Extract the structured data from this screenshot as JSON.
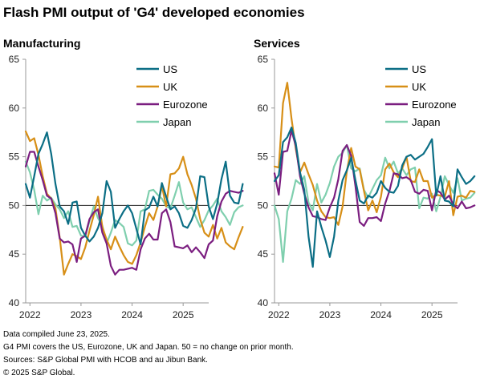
{
  "title": "Flash PMI output of 'G4' developed economies",
  "colors": {
    "US": "#0b6e85",
    "UK": "#d78f17",
    "Eurozone": "#7b1e80",
    "Japan": "#7fcfae"
  },
  "notes": [
    "Data compiled June 23, 2025.",
    "G4 PMI covers the US, Eurozone, UK and Japan. 50 = no change on prior month.",
    "Sources: S&P Global PMI with HCOB and au Jibun Bank.",
    "© 2025 S&P Global."
  ],
  "chart_data": [
    {
      "type": "line",
      "title": "Manufacturing",
      "ylim": [
        40,
        65
      ],
      "yticks": [
        40,
        45,
        50,
        55,
        60,
        65
      ],
      "xlim": [
        2021.917,
        2025.5
      ],
      "xticks": [
        2022,
        2023,
        2024,
        2025
      ],
      "xtick_labels": [
        "2022",
        "2023",
        "2024",
        "2025"
      ],
      "reference_line": 50,
      "legend_position": "top-right",
      "series": [
        {
          "name": "US",
          "x_start": 2021.917,
          "values": [
            52.2,
            50.8,
            53.0,
            55.3,
            56.3,
            57.5,
            55.3,
            52.2,
            49.9,
            49.4,
            48.1,
            50.3,
            50.4,
            47.7,
            46.9,
            46.3,
            46.8,
            47.7,
            49.2,
            52.5,
            51.4,
            47.7,
            48.6,
            49.4,
            50.0,
            49.2,
            47.6,
            46.0,
            49.5,
            49.8,
            50.9,
            49.9,
            52.3,
            50.9,
            49.6,
            49.9,
            49.2,
            47.9,
            47.7,
            48.5,
            49.7,
            53.0,
            52.9,
            49.9,
            48.6,
            50.2,
            52.7,
            54.5,
            51.0,
            50.3,
            50.2,
            52.2
          ]
        },
        {
          "name": "UK",
          "x_start": 2021.917,
          "values": [
            57.6,
            56.6,
            56.9,
            55.2,
            53.0,
            51.2,
            50.7,
            49.7,
            46.7,
            42.9,
            44.0,
            45.0,
            44.8,
            44.5,
            45.7,
            47.4,
            49.0,
            50.9,
            47.8,
            46.5,
            45.5,
            46.8,
            45.8,
            44.9,
            44.2,
            44.0,
            44.9,
            46.2,
            47.8,
            49.2,
            48.5,
            49.9,
            52.0,
            49.9,
            53.2,
            53.3,
            53.8,
            55.0,
            53.2,
            52.1,
            50.7,
            48.6,
            47.2,
            46.8,
            48.0,
            46.6,
            47.7,
            46.2,
            45.8,
            45.5,
            46.7,
            47.8
          ]
        },
        {
          "name": "Eurozone",
          "x_start": 2021.917,
          "values": [
            54.0,
            55.5,
            55.5,
            54.0,
            52.6,
            51.0,
            50.7,
            49.2,
            46.6,
            46.2,
            46.3,
            46.0,
            44.2,
            46.6,
            46.9,
            48.6,
            49.3,
            49.6,
            47.2,
            46.1,
            43.8,
            42.9,
            43.4,
            43.4,
            43.5,
            43.6,
            43.4,
            45.5,
            46.6,
            47.1,
            46.5,
            46.5,
            49.2,
            49.6,
            48.3,
            45.8,
            45.7,
            45.6,
            45.9,
            45.2,
            45.7,
            45.2,
            44.6,
            46.0,
            46.4,
            48.9,
            50.4,
            51.2,
            51.5,
            51.4,
            51.3,
            51.5
          ]
        },
        {
          "name": "Japan",
          "x_start": 2021.917,
          "values": [
            54.5,
            53.4,
            51.6,
            49.1,
            51.0,
            50.5,
            50.8,
            50.1,
            49.6,
            48.7,
            49.4,
            47.8,
            47.9,
            46.9,
            46.8,
            48.4,
            49.9,
            48.7,
            47.9,
            46.1,
            47.2,
            48.5,
            48.2,
            47.8,
            46.1,
            45.9,
            46.4,
            49.4,
            49.6,
            51.5,
            51.6,
            51.1,
            50.7,
            49.9,
            49.7,
            51.0,
            52.4,
            50.3,
            49.6,
            49.8,
            48.8,
            47.8,
            48.5,
            49.5,
            50.0,
            50.7,
            49.4,
            48.8,
            48.0,
            49.3,
            49.8,
            50.0
          ]
        }
      ]
    },
    {
      "type": "line",
      "title": "Services",
      "ylim": [
        40,
        65
      ],
      "yticks": [
        40,
        45,
        50,
        55,
        60,
        65
      ],
      "xlim": [
        2021.917,
        2025.5
      ],
      "xticks": [
        2022,
        2023,
        2024,
        2025
      ],
      "xtick_labels": [
        "2022",
        "2023",
        "2024",
        "2025"
      ],
      "reference_line": 50,
      "legend_position": "top-right",
      "series": [
        {
          "name": "US",
          "x_start": 2021.917,
          "values": [
            52.5,
            53.1,
            56.5,
            57.0,
            58.0,
            56.4,
            53.4,
            51.6,
            46.8,
            43.7,
            49.4,
            47.8,
            46.4,
            44.7,
            46.8,
            50.5,
            52.6,
            53.6,
            54.9,
            52.6,
            50.5,
            50.2,
            51.0,
            50.8,
            51.3,
            52.5,
            51.8,
            51.4,
            51.3,
            52.0,
            54.1,
            55.0,
            55.2,
            54.7,
            55.0,
            55.3,
            56.0,
            56.8,
            51.0,
            53.0,
            50.5,
            50.4,
            49.9,
            53.7,
            52.9,
            52.2,
            52.5,
            53.0
          ]
        },
        {
          "name": "UK",
          "x_start": 2021.917,
          "values": [
            54.0,
            53.9,
            60.5,
            62.6,
            58.9,
            55.8,
            53.4,
            54.4,
            53.2,
            52.1,
            50.5,
            49.4,
            48.8,
            48.7,
            48.8,
            48.0,
            49.9,
            53.5,
            55.9,
            54.0,
            53.7,
            51.5,
            49.5,
            50.5,
            49.3,
            50.9,
            53.7,
            54.3,
            53.4,
            52.9,
            53.8,
            55.0,
            52.5,
            52.4,
            53.7,
            52.5,
            52.5,
            50.8,
            51.1,
            51.0,
            50.9,
            52.5,
            49.0,
            50.9,
            51.0,
            50.8,
            51.5,
            51.4
          ]
        },
        {
          "name": "Eurozone",
          "x_start": 2021.917,
          "values": [
            53.3,
            51.1,
            55.5,
            55.6,
            57.7,
            56.1,
            53.0,
            51.2,
            49.8,
            48.9,
            48.8,
            48.6,
            48.5,
            49.8,
            50.8,
            52.7,
            55.6,
            56.2,
            55.1,
            52.0,
            48.3,
            47.9,
            48.7,
            48.7,
            48.8,
            48.4,
            50.2,
            51.5,
            53.3,
            53.2,
            52.8,
            52.9,
            52.6,
            51.4,
            51.2,
            51.6,
            51.5,
            49.5,
            51.6,
            51.3,
            50.6,
            51.0,
            50.1,
            49.7,
            50.4,
            49.7,
            49.8,
            50.0
          ]
        },
        {
          "name": "Japan",
          "x_start": 2021.917,
          "values": [
            50.0,
            48.6,
            44.2,
            49.4,
            50.7,
            52.6,
            52.2,
            53.0,
            50.3,
            49.5,
            52.2,
            50.3,
            51.1,
            52.3,
            54.0,
            55.0,
            55.4,
            56.2,
            53.8,
            53.5,
            53.8,
            51.6,
            50.8,
            51.7,
            52.6,
            53.1,
            54.9,
            53.8,
            54.5,
            53.3,
            53.8,
            53.1,
            53.7,
            53.9,
            49.7,
            50.8,
            50.7,
            51.2,
            49.4,
            50.9,
            53.0,
            52.1,
            51.3,
            52.8,
            50.5,
            50.7,
            50.8,
            51.3
          ]
        }
      ]
    }
  ]
}
